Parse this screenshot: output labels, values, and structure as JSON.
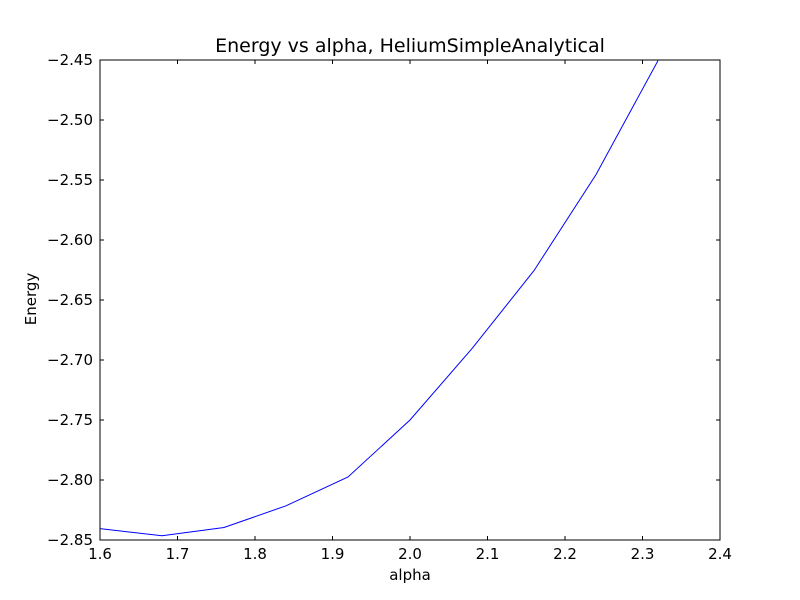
{
  "chart_data": {
    "type": "line",
    "title": "Energy vs alpha, HeliumSimpleAnalytical",
    "xlabel": "alpha",
    "ylabel": "Energy",
    "xlim": [
      1.6,
      2.4
    ],
    "ylim": [
      -2.85,
      -2.45
    ],
    "xticks": [
      1.6,
      1.7,
      1.8,
      1.9,
      2.0,
      2.1,
      2.2,
      2.3,
      2.4
    ],
    "xtick_labels": [
      "1.6",
      "1.7",
      "1.8",
      "1.9",
      "2.0",
      "2.1",
      "2.2",
      "2.3",
      "2.4"
    ],
    "yticks": [
      -2.85,
      -2.8,
      -2.75,
      -2.7,
      -2.65,
      -2.6,
      -2.55,
      -2.5,
      -2.45
    ],
    "ytick_labels": [
      "−2.85",
      "−2.80",
      "−2.75",
      "−2.70",
      "−2.65",
      "−2.60",
      "−2.55",
      "−2.50",
      "−2.45"
    ],
    "grid": false,
    "series": [
      {
        "color": "#0000ff",
        "x": [
          1.6,
          1.68,
          1.76,
          1.84,
          1.92,
          2.0,
          2.08,
          2.16,
          2.24,
          2.32
        ],
        "y": [
          -2.8405,
          -2.8465,
          -2.8396,
          -2.8215,
          -2.7975,
          -2.75,
          -2.6905,
          -2.6255,
          -2.5455,
          -2.4505
        ]
      }
    ]
  }
}
